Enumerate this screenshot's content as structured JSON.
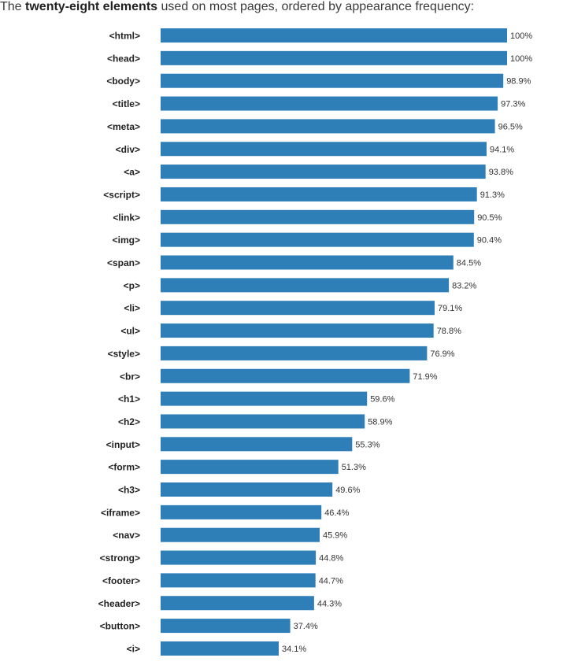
{
  "heading": {
    "prefix": "The ",
    "emphasis": "twenty-eight elements",
    "suffix": " used on most pages, ordered by appearance frequency:"
  },
  "colors": {
    "bar": "#2e7fb8",
    "label": "#222222",
    "value": "#333333"
  },
  "chart_data": {
    "type": "bar",
    "orientation": "horizontal",
    "value_suffix": "%",
    "xlim": [
      0,
      100
    ],
    "grid": false,
    "categories": [
      "<html>",
      "<head>",
      "<body>",
      "<title>",
      "<meta>",
      "<div>",
      "<a>",
      "<script>",
      "<link>",
      "<img>",
      "<span>",
      "<p>",
      "<li>",
      "<ul>",
      "<style>",
      "<br>",
      "<h1>",
      "<h2>",
      "<input>",
      "<form>",
      "<h3>",
      "<iframe>",
      "<nav>",
      "<strong>",
      "<footer>",
      "<header>",
      "<button>",
      "<i>"
    ],
    "values": [
      100,
      100,
      98.9,
      97.3,
      96.5,
      94.1,
      93.8,
      91.3,
      90.5,
      90.4,
      84.5,
      83.2,
      79.1,
      78.8,
      76.9,
      71.9,
      59.6,
      58.9,
      55.3,
      51.3,
      49.6,
      46.4,
      45.9,
      44.8,
      44.7,
      44.3,
      37.4,
      34.1
    ],
    "labels": [
      "100%",
      "100%",
      "98.9%",
      "97.3%",
      "96.5%",
      "94.1%",
      "93.8%",
      "91.3%",
      "90.5%",
      "90.4%",
      "84.5%",
      "83.2%",
      "79.1%",
      "78.8%",
      "76.9%",
      "71.9%",
      "59.6%",
      "58.9%",
      "55.3%",
      "51.3%",
      "49.6%",
      "46.4%",
      "45.9%",
      "44.8%",
      "44.7%",
      "44.3%",
      "37.4%",
      "34.1%"
    ]
  }
}
